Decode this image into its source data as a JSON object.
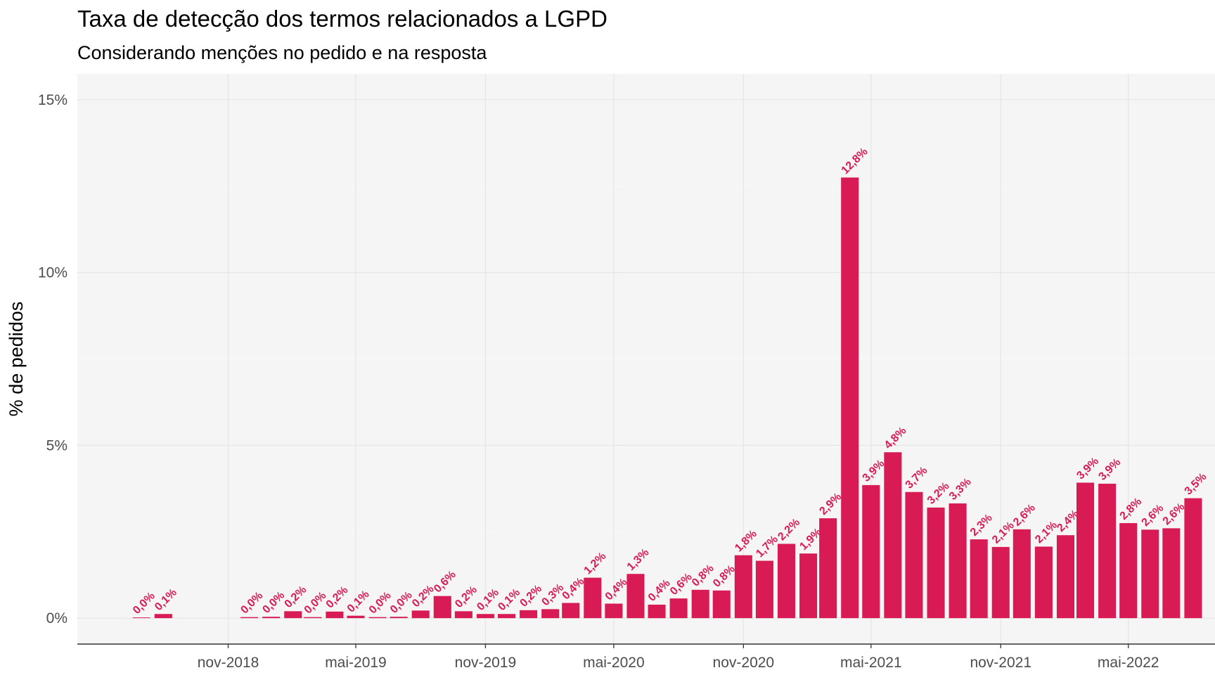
{
  "chart_data": {
    "type": "bar",
    "title": "Taxa de detecção dos termos relacionados a LGPD",
    "subtitle": "Considerando menções no pedido e na resposta",
    "xlabel": "",
    "ylabel": "% de pedidos",
    "bar_color": "#D81B55",
    "panel_background": "#F5F5F5",
    "grid": true,
    "ylim": [
      -0.75,
      15.75
    ],
    "y_ticks": [
      {
        "value": 0,
        "label": "0%"
      },
      {
        "value": 5,
        "label": "5%"
      },
      {
        "value": 10,
        "label": "10%"
      },
      {
        "value": 15,
        "label": "15%"
      }
    ],
    "x_ticks": [
      {
        "date": "2018-11-01",
        "label": "nov-2018"
      },
      {
        "date": "2019-05-01",
        "label": "mai-2019"
      },
      {
        "date": "2019-11-01",
        "label": "nov-2019"
      },
      {
        "date": "2020-05-01",
        "label": "mai-2020"
      },
      {
        "date": "2020-11-01",
        "label": "nov-2020"
      },
      {
        "date": "2021-05-01",
        "label": "mai-2021"
      },
      {
        "date": "2021-11-01",
        "label": "nov-2021"
      },
      {
        "date": "2022-05-01",
        "label": "mai-2022"
      }
    ],
    "xlim": [
      "2018-04-01",
      "2022-09-01"
    ],
    "bars": [
      {
        "date": "2018-07-01",
        "value": 0.02,
        "label": "0,0%"
      },
      {
        "date": "2018-08-01",
        "value": 0.12,
        "label": "0,1%"
      },
      {
        "date": "2018-10-01",
        "value": 0.0,
        "label": ""
      },
      {
        "date": "2018-11-01",
        "value": 0.0,
        "label": ""
      },
      {
        "date": "2018-12-01",
        "value": 0.03,
        "label": "0,0%"
      },
      {
        "date": "2019-01-01",
        "value": 0.04,
        "label": "0,0%"
      },
      {
        "date": "2019-02-01",
        "value": 0.2,
        "label": "0,2%"
      },
      {
        "date": "2019-03-01",
        "value": 0.03,
        "label": "0,0%"
      },
      {
        "date": "2019-04-01",
        "value": 0.19,
        "label": "0,2%"
      },
      {
        "date": "2019-05-01",
        "value": 0.07,
        "label": "0,1%"
      },
      {
        "date": "2019-06-01",
        "value": 0.03,
        "label": "0,0%"
      },
      {
        "date": "2019-07-01",
        "value": 0.04,
        "label": "0,0%"
      },
      {
        "date": "2019-08-01",
        "value": 0.22,
        "label": "0,2%"
      },
      {
        "date": "2019-09-01",
        "value": 0.64,
        "label": "0,6%"
      },
      {
        "date": "2019-10-01",
        "value": 0.2,
        "label": "0,2%"
      },
      {
        "date": "2019-11-01",
        "value": 0.12,
        "label": "0,1%"
      },
      {
        "date": "2019-12-01",
        "value": 0.12,
        "label": "0,1%"
      },
      {
        "date": "2020-01-01",
        "value": 0.23,
        "label": "0,2%"
      },
      {
        "date": "2020-02-01",
        "value": 0.26,
        "label": "0,3%"
      },
      {
        "date": "2020-03-01",
        "value": 0.44,
        "label": "0,4%"
      },
      {
        "date": "2020-04-01",
        "value": 1.17,
        "label": "1,2%"
      },
      {
        "date": "2020-05-01",
        "value": 0.42,
        "label": "0,4%"
      },
      {
        "date": "2020-06-01",
        "value": 1.28,
        "label": "1,3%"
      },
      {
        "date": "2020-07-01",
        "value": 0.39,
        "label": "0,4%"
      },
      {
        "date": "2020-08-01",
        "value": 0.57,
        "label": "0,6%"
      },
      {
        "date": "2020-09-01",
        "value": 0.82,
        "label": "0,8%"
      },
      {
        "date": "2020-10-01",
        "value": 0.8,
        "label": "0,8%"
      },
      {
        "date": "2020-11-01",
        "value": 1.82,
        "label": "1,8%"
      },
      {
        "date": "2020-12-01",
        "value": 1.66,
        "label": "1,7%"
      },
      {
        "date": "2021-01-01",
        "value": 2.15,
        "label": "2,2%"
      },
      {
        "date": "2021-02-01",
        "value": 1.87,
        "label": "1,9%"
      },
      {
        "date": "2021-03-01",
        "value": 2.89,
        "label": "2,9%"
      },
      {
        "date": "2021-04-01",
        "value": 12.75,
        "label": "12,8%"
      },
      {
        "date": "2021-05-01",
        "value": 3.85,
        "label": "3,9%"
      },
      {
        "date": "2021-06-01",
        "value": 4.8,
        "label": "4,8%"
      },
      {
        "date": "2021-07-01",
        "value": 3.65,
        "label": "3,7%"
      },
      {
        "date": "2021-08-01",
        "value": 3.2,
        "label": "3,2%"
      },
      {
        "date": "2021-09-01",
        "value": 3.32,
        "label": "3,3%"
      },
      {
        "date": "2021-10-01",
        "value": 2.28,
        "label": "2,3%"
      },
      {
        "date": "2021-11-01",
        "value": 2.06,
        "label": "2,1%"
      },
      {
        "date": "2021-12-01",
        "value": 2.57,
        "label": "2,6%"
      },
      {
        "date": "2022-01-01",
        "value": 2.07,
        "label": "2,1%"
      },
      {
        "date": "2022-02-01",
        "value": 2.4,
        "label": "2,4%"
      },
      {
        "date": "2022-03-01",
        "value": 3.92,
        "label": "3,9%"
      },
      {
        "date": "2022-04-01",
        "value": 3.89,
        "label": "3,9%"
      },
      {
        "date": "2022-05-01",
        "value": 2.75,
        "label": "2,8%"
      },
      {
        "date": "2022-06-01",
        "value": 2.56,
        "label": "2,6%"
      },
      {
        "date": "2022-07-01",
        "value": 2.6,
        "label": "2,6%"
      },
      {
        "date": "2022-08-01",
        "value": 3.47,
        "label": "3,5%"
      }
    ]
  }
}
